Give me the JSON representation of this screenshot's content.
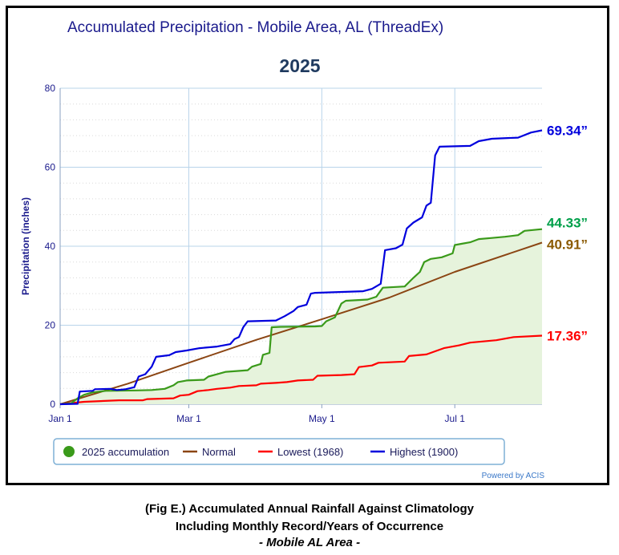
{
  "caption": {
    "line1": "(Fig E.) Accumulated Annual Rainfall Against  Climatology",
    "line2": "Including Monthly Record/Years of Occurrence",
    "line3": "- Mobile AL Area -"
  },
  "credit": "Powered by ACIS",
  "colors": {
    "accum": "#3a9a1a",
    "accum_fill": "#e6f3dc",
    "normal": "#8b4513",
    "lowest": "#ff0000",
    "highest": "#0000dd",
    "title": "#1a1a8c",
    "axis_text": "#1a1a8c",
    "grid": "#b8d4ea",
    "year": "#1f3a5f",
    "label_accum": "#00a04a",
    "label_normal": "#8b5a00",
    "credit": "#3a78c8"
  },
  "chart_data": {
    "type": "line",
    "title": "Accumulated Precipitation - Mobile Area, AL (ThreadEx)",
    "subtitle": "2025",
    "ylabel": "Precipitation (inches)",
    "xlabel": "",
    "ylim": [
      0,
      80
    ],
    "yticks": [
      0,
      20,
      40,
      60,
      80
    ],
    "xlim": [
      "2025-01-01",
      "2025-08-10"
    ],
    "xticks": [
      {
        "date": "2025-01-01",
        "label": "Jan 1"
      },
      {
        "date": "2025-03-01",
        "label": "Mar 1"
      },
      {
        "date": "2025-05-01",
        "label": "May 1"
      },
      {
        "date": "2025-07-01",
        "label": "Jul 1"
      }
    ],
    "grid": true,
    "legend_position": "bottom",
    "series": [
      {
        "name": "2025 accumulation",
        "color_key": "accum",
        "marker": "circle",
        "filled": true,
        "end_label": "44.33”",
        "points": [
          [
            "2025-01-01",
            0.0
          ],
          [
            "2025-01-06",
            0.2
          ],
          [
            "2025-01-09",
            1.5
          ],
          [
            "2025-01-12",
            2.4
          ],
          [
            "2025-01-16",
            3.0
          ],
          [
            "2025-01-22",
            3.4
          ],
          [
            "2025-02-05",
            3.5
          ],
          [
            "2025-02-12",
            3.6
          ],
          [
            "2025-02-18",
            3.9
          ],
          [
            "2025-02-22",
            4.8
          ],
          [
            "2025-02-24",
            5.6
          ],
          [
            "2025-02-28",
            6.0
          ],
          [
            "2025-03-08",
            6.2
          ],
          [
            "2025-03-10",
            7.0
          ],
          [
            "2025-03-14",
            7.6
          ],
          [
            "2025-03-18",
            8.2
          ],
          [
            "2025-03-28",
            8.6
          ],
          [
            "2025-03-30",
            9.5
          ],
          [
            "2025-04-03",
            10.2
          ],
          [
            "2025-04-04",
            12.5
          ],
          [
            "2025-04-07",
            13.0
          ],
          [
            "2025-04-08",
            19.5
          ],
          [
            "2025-04-12",
            19.6
          ],
          [
            "2025-04-28",
            19.7
          ],
          [
            "2025-05-01",
            19.8
          ],
          [
            "2025-05-03",
            21.0
          ],
          [
            "2025-05-07",
            22.0
          ],
          [
            "2025-05-10",
            25.5
          ],
          [
            "2025-05-12",
            26.2
          ],
          [
            "2025-05-22",
            26.5
          ],
          [
            "2025-05-26",
            27.2
          ],
          [
            "2025-05-29",
            29.5
          ],
          [
            "2025-06-08",
            29.8
          ],
          [
            "2025-06-12",
            32.0
          ],
          [
            "2025-06-15",
            33.5
          ],
          [
            "2025-06-17",
            36.0
          ],
          [
            "2025-06-20",
            36.8
          ],
          [
            "2025-06-25",
            37.2
          ],
          [
            "2025-06-30",
            38.2
          ],
          [
            "2025-07-01",
            40.3
          ],
          [
            "2025-07-04",
            40.6
          ],
          [
            "2025-07-08",
            41.0
          ],
          [
            "2025-07-12",
            41.8
          ],
          [
            "2025-07-18",
            42.1
          ],
          [
            "2025-07-24",
            42.4
          ],
          [
            "2025-07-30",
            42.8
          ],
          [
            "2025-08-02",
            43.9
          ],
          [
            "2025-08-10",
            44.33
          ]
        ]
      },
      {
        "name": "Normal",
        "color_key": "normal",
        "marker": "line",
        "end_label": "40.91”",
        "points": [
          [
            "2025-01-01",
            0.0
          ],
          [
            "2025-02-01",
            5.2
          ],
          [
            "2025-03-01",
            10.5
          ],
          [
            "2025-04-01",
            16.3
          ],
          [
            "2025-05-01",
            21.5
          ],
          [
            "2025-06-01",
            27.0
          ],
          [
            "2025-07-01",
            33.5
          ],
          [
            "2025-08-10",
            40.91
          ]
        ]
      },
      {
        "name": "Lowest (1968)",
        "color_key": "lowest",
        "marker": "line",
        "end_label": "17.36”",
        "points": [
          [
            "2025-01-01",
            0.0
          ],
          [
            "2025-01-12",
            0.6
          ],
          [
            "2025-01-28",
            1.0
          ],
          [
            "2025-02-08",
            1.0
          ],
          [
            "2025-02-10",
            1.3
          ],
          [
            "2025-02-22",
            1.5
          ],
          [
            "2025-02-25",
            2.2
          ],
          [
            "2025-03-01",
            2.4
          ],
          [
            "2025-03-05",
            3.3
          ],
          [
            "2025-03-10",
            3.6
          ],
          [
            "2025-03-14",
            3.9
          ],
          [
            "2025-03-20",
            4.2
          ],
          [
            "2025-03-24",
            4.6
          ],
          [
            "2025-04-01",
            4.8
          ],
          [
            "2025-04-03",
            5.2
          ],
          [
            "2025-04-10",
            5.4
          ],
          [
            "2025-04-15",
            5.6
          ],
          [
            "2025-04-20",
            6.0
          ],
          [
            "2025-04-27",
            6.2
          ],
          [
            "2025-04-29",
            7.2
          ],
          [
            "2025-05-10",
            7.4
          ],
          [
            "2025-05-16",
            7.6
          ],
          [
            "2025-05-18",
            9.4
          ],
          [
            "2025-05-24",
            9.8
          ],
          [
            "2025-05-27",
            10.5
          ],
          [
            "2025-06-08",
            10.8
          ],
          [
            "2025-06-10",
            12.2
          ],
          [
            "2025-06-18",
            12.6
          ],
          [
            "2025-06-22",
            13.4
          ],
          [
            "2025-06-26",
            14.2
          ],
          [
            "2025-06-30",
            14.6
          ],
          [
            "2025-07-03",
            14.9
          ],
          [
            "2025-07-08",
            15.6
          ],
          [
            "2025-07-20",
            16.2
          ],
          [
            "2025-07-28",
            17.0
          ],
          [
            "2025-08-10",
            17.36
          ]
        ]
      },
      {
        "name": "Highest (1900)",
        "color_key": "highest",
        "marker": "line",
        "end_label": "69.34”",
        "points": [
          [
            "2025-01-01",
            0.0
          ],
          [
            "2025-01-09",
            0.1
          ],
          [
            "2025-01-10",
            3.2
          ],
          [
            "2025-01-16",
            3.4
          ],
          [
            "2025-01-17",
            3.8
          ],
          [
            "2025-01-24",
            3.9
          ],
          [
            "2025-01-27",
            3.6
          ],
          [
            "2025-01-31",
            3.8
          ],
          [
            "2025-02-04",
            4.3
          ],
          [
            "2025-02-06",
            7.0
          ],
          [
            "2025-02-09",
            7.6
          ],
          [
            "2025-02-12",
            9.5
          ],
          [
            "2025-02-14",
            12.0
          ],
          [
            "2025-02-20",
            12.4
          ],
          [
            "2025-02-23",
            13.2
          ],
          [
            "2025-02-28",
            13.6
          ],
          [
            "2025-03-06",
            14.2
          ],
          [
            "2025-03-14",
            14.6
          ],
          [
            "2025-03-20",
            15.2
          ],
          [
            "2025-03-22",
            16.5
          ],
          [
            "2025-03-24",
            17.0
          ],
          [
            "2025-03-26",
            19.5
          ],
          [
            "2025-03-28",
            21.0
          ],
          [
            "2025-04-10",
            21.2
          ],
          [
            "2025-04-14",
            22.3
          ],
          [
            "2025-04-18",
            23.6
          ],
          [
            "2025-04-20",
            24.6
          ],
          [
            "2025-04-24",
            25.2
          ],
          [
            "2025-04-26",
            28.0
          ],
          [
            "2025-04-28",
            28.2
          ],
          [
            "2025-05-20",
            28.6
          ],
          [
            "2025-05-24",
            29.2
          ],
          [
            "2025-05-28",
            30.5
          ],
          [
            "2025-05-30",
            39.0
          ],
          [
            "2025-06-04",
            39.5
          ],
          [
            "2025-06-07",
            40.4
          ],
          [
            "2025-06-09",
            44.5
          ],
          [
            "2025-06-12",
            46.0
          ],
          [
            "2025-06-16",
            47.3
          ],
          [
            "2025-06-18",
            50.3
          ],
          [
            "2025-06-20",
            51.0
          ],
          [
            "2025-06-22",
            63.0
          ],
          [
            "2025-06-24",
            65.2
          ],
          [
            "2025-07-08",
            65.4
          ],
          [
            "2025-07-12",
            66.6
          ],
          [
            "2025-07-18",
            67.2
          ],
          [
            "2025-07-30",
            67.5
          ],
          [
            "2025-08-05",
            68.8
          ],
          [
            "2025-08-10",
            69.34
          ]
        ]
      }
    ]
  }
}
